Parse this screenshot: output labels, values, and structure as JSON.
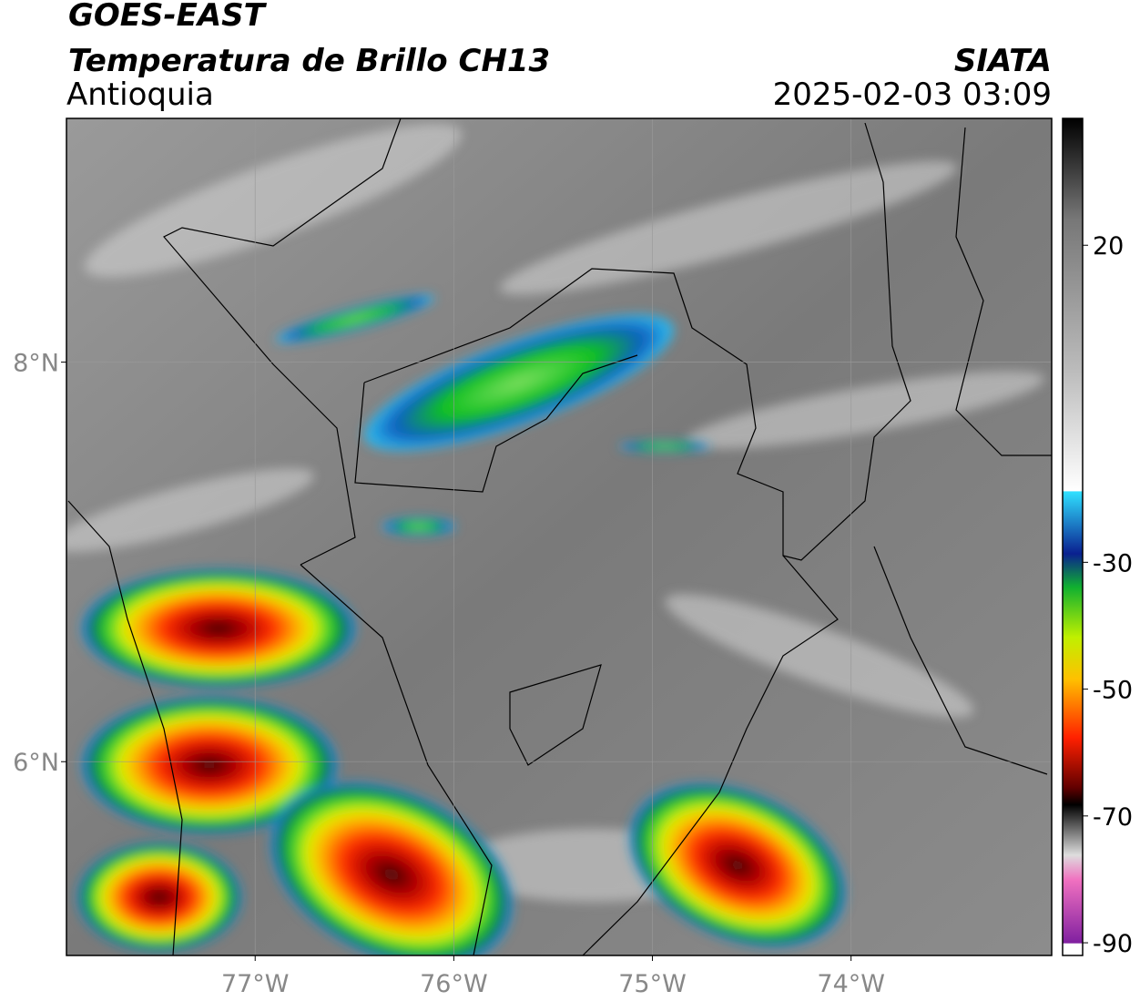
{
  "header": {
    "title": "GOES-EAST",
    "subtitle": "Temperatura de Brillo CH13",
    "region": "Antioquia",
    "source": "SIATA",
    "datetime": "2025-02-03 03:09"
  },
  "map": {
    "latlim": [
      5.03,
      9.22
    ],
    "lonlim": [
      -77.95,
      -72.99
    ],
    "lat_ticks": [
      {
        "value": 8,
        "label": "8°N"
      },
      {
        "value": 6,
        "label": "6°N"
      }
    ],
    "lon_ticks": [
      {
        "value": -77,
        "label": "77°W"
      },
      {
        "value": -76,
        "label": "76°W"
      },
      {
        "value": -75,
        "label": "75°W"
      },
      {
        "value": -74,
        "label": "74°W"
      }
    ]
  },
  "colorbar": {
    "lim": [
      -92,
      40
    ],
    "ticks": [
      20,
      -30,
      -50,
      -70,
      -90
    ]
  }
}
